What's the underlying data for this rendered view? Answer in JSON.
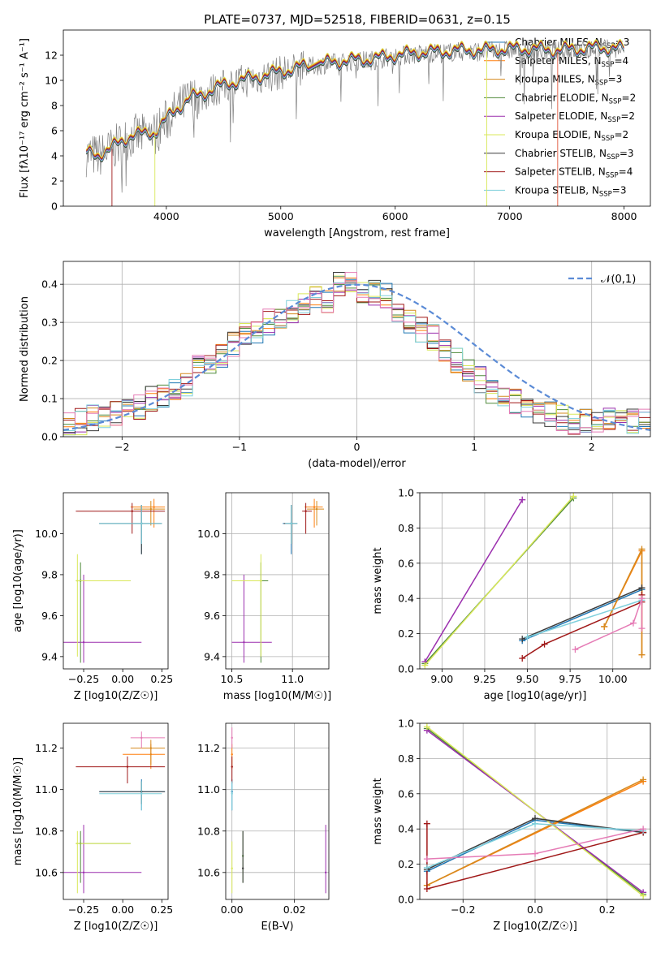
{
  "title": "PLATE=0737, MJD=52518, FIBERID=0631, z=0.15",
  "models": [
    {
      "label": "Chabrier MILES, N",
      "sub": "SSP",
      "suffix": "=3",
      "color": "#1f77b4"
    },
    {
      "label": "Salpeter MILES, N",
      "sub": "SSP",
      "suffix": "=4",
      "color": "#ff7f0e"
    },
    {
      "label": "Kroupa MILES, N",
      "sub": "SSP",
      "suffix": "=3",
      "color": "#d68a1e"
    },
    {
      "label": "Chabrier ELODIE, N",
      "sub": "SSP",
      "suffix": "=2",
      "color": "#4f8a3a"
    },
    {
      "label": "Salpeter ELODIE, N",
      "sub": "SSP",
      "suffix": "=2",
      "color": "#9b2fae"
    },
    {
      "label": "Kroupa ELODIE, N",
      "sub": "SSP",
      "suffix": "=2",
      "color": "#d9e85a"
    },
    {
      "label": "Chabrier STELIB, N",
      "sub": "SSP",
      "suffix": "=3",
      "color": "#3b3b3b"
    },
    {
      "label": "Salpeter STELIB, N",
      "sub": "SSP",
      "suffix": "=4",
      "color": "#a01818"
    },
    {
      "label": "Kroupa STELIB, N",
      "sub": "SSP",
      "suffix": "=3",
      "color": "#7fd0dc"
    }
  ],
  "chart_data": [
    {
      "type": "line",
      "xlabel": "wavelength [Angstrom, rest frame]",
      "ylabel": "Flux [fλ10⁻¹⁷ erg cm⁻² s⁻¹ A⁻¹]",
      "xlim": [
        3100,
        8230
      ],
      "ylim": [
        0,
        14
      ],
      "xticks": [
        4000,
        5000,
        6000,
        7000,
        8000
      ],
      "yticks": [
        0,
        2,
        4,
        6,
        8,
        10,
        12
      ],
      "data_color": "#808080",
      "continuum": {
        "x": [
          3300,
          3400,
          3500,
          3600,
          3700,
          3800,
          3900,
          4000,
          4100,
          4200,
          4300,
          4400,
          4600,
          4800,
          5000,
          5200,
          5400,
          5600,
          5800,
          6000,
          6200,
          6400,
          6600,
          6800,
          7000,
          7200,
          7400,
          7600,
          7800,
          8000
        ],
        "y": [
          4.1,
          4.0,
          4.4,
          5.0,
          5.6,
          5.6,
          5.8,
          6.8,
          7.7,
          8.5,
          8.7,
          9.2,
          9.8,
          10.2,
          10.6,
          11.0,
          11.3,
          11.5,
          11.6,
          11.9,
          12.1,
          12.2,
          12.3,
          12.3,
          12.4,
          12.4,
          12.3,
          12.4,
          12.5,
          12.4
        ]
      }
    },
    {
      "type": "line",
      "xlabel": "(data-model)/error",
      "ylabel": "Normed distribution",
      "xlim": [
        -2.5,
        2.5
      ],
      "ylim": [
        0,
        0.46
      ],
      "xticks": [
        -2,
        -1,
        0,
        1,
        2
      ],
      "yticks": [
        0.0,
        0.1,
        0.2,
        0.3,
        0.4
      ],
      "reference": {
        "name": "𝒩(0,1)",
        "color": "#5b8bd6"
      },
      "histogram_bin_width": 0.1,
      "histogram_envelope": [
        0.04,
        0.04,
        0.05,
        0.05,
        0.06,
        0.07,
        0.08,
        0.1,
        0.11,
        0.12,
        0.14,
        0.2,
        0.19,
        0.21,
        0.24,
        0.27,
        0.28,
        0.3,
        0.31,
        0.33,
        0.35,
        0.37,
        0.36,
        0.4,
        0.41,
        0.38,
        0.38,
        0.37,
        0.33,
        0.3,
        0.28,
        0.26,
        0.23,
        0.2,
        0.17,
        0.15,
        0.12,
        0.11,
        0.09,
        0.08,
        0.07,
        0.06,
        0.05,
        0.04,
        0.04,
        0.04,
        0.04,
        0.04,
        0.04,
        0.04
      ]
    },
    {
      "type": "scatter",
      "xlabel": "Z [log10(Z/Z☉)]",
      "ylabel": "age  [log10(age/yr)]",
      "xlim": [
        -0.38,
        0.29
      ],
      "ylim": [
        9.34,
        10.2
      ],
      "xticks": [
        -0.25,
        0.0,
        0.25
      ],
      "yticks": [
        9.4,
        9.6,
        9.8,
        10.0
      ],
      "points": [
        {
          "m": 0,
          "x": 0.12,
          "y": 10.05,
          "ex": [
            -0.15,
            0.25
          ],
          "ey": [
            9.9,
            10.14
          ]
        },
        {
          "m": 1,
          "x": 0.2,
          "y": 10.13,
          "ex": [
            0.05,
            0.27
          ],
          "ey": [
            10.03,
            10.17
          ]
        },
        {
          "m": 2,
          "x": 0.18,
          "y": 10.12,
          "ex": [
            0.07,
            0.27
          ],
          "ey": [
            10.04,
            10.16
          ]
        },
        {
          "m": 3,
          "x": -0.27,
          "y": 9.77,
          "ex": [
            -0.3,
            0.05
          ],
          "ey": [
            9.37,
            9.86
          ]
        },
        {
          "m": 4,
          "x": -0.25,
          "y": 9.47,
          "ex": [
            -0.38,
            0.12
          ],
          "ey": [
            9.37,
            9.8
          ]
        },
        {
          "m": 5,
          "x": -0.29,
          "y": 9.77,
          "ex": [
            -0.3,
            0.05
          ],
          "ey": [
            9.4,
            9.9
          ]
        },
        {
          "m": 6,
          "x": 0.12,
          "y": 10.05,
          "ex": [
            -0.15,
            0.25
          ],
          "ey": [
            9.9,
            10.14
          ]
        },
        {
          "m": 7,
          "x": 0.06,
          "y": 10.11,
          "ex": [
            -0.3,
            0.27
          ],
          "ey": [
            10.0,
            10.15
          ]
        },
        {
          "m": 8,
          "x": 0.12,
          "y": 10.05,
          "ex": [
            -0.15,
            0.25
          ],
          "ey": [
            9.95,
            10.14
          ]
        }
      ]
    },
    {
      "type": "scatter",
      "xlabel": "mass [log10(M/M☉)]",
      "ylabel": "",
      "xlim": [
        10.45,
        11.3
      ],
      "ylim": [
        9.34,
        10.2
      ],
      "xticks": [
        10.5,
        11.0
      ],
      "yticks": [
        9.4,
        9.6,
        9.8,
        10.0
      ],
      "points": [
        {
          "m": 0,
          "x": 10.99,
          "y": 10.05,
          "ex": [
            10.92,
            11.04
          ],
          "ey": [
            9.9,
            10.14
          ]
        },
        {
          "m": 1,
          "x": 11.18,
          "y": 10.13,
          "ex": [
            11.1,
            11.25
          ],
          "ey": [
            10.03,
            10.17
          ]
        },
        {
          "m": 2,
          "x": 11.2,
          "y": 10.12,
          "ex": [
            11.12,
            11.26
          ],
          "ey": [
            10.04,
            10.16
          ]
        },
        {
          "m": 3,
          "x": 10.74,
          "y": 9.77,
          "ex": [
            10.55,
            10.8
          ],
          "ey": [
            9.37,
            9.86
          ]
        },
        {
          "m": 4,
          "x": 10.6,
          "y": 9.47,
          "ex": [
            10.5,
            10.83
          ],
          "ey": [
            9.37,
            9.8
          ]
        },
        {
          "m": 5,
          "x": 10.74,
          "y": 9.77,
          "ex": [
            10.5,
            10.75
          ],
          "ey": [
            9.4,
            9.9
          ]
        },
        {
          "m": 6,
          "x": 10.99,
          "y": 10.05,
          "ex": [
            10.93,
            11.04
          ],
          "ey": [
            9.95,
            10.14
          ]
        },
        {
          "m": 7,
          "x": 11.11,
          "y": 10.11,
          "ex": [
            11.08,
            11.16
          ],
          "ey": [
            10.0,
            10.15
          ]
        },
        {
          "m": 8,
          "x": 10.99,
          "y": 10.05,
          "ex": [
            10.94,
            11.04
          ],
          "ey": [
            9.95,
            10.14
          ]
        }
      ]
    },
    {
      "type": "line",
      "xlabel": "age  [log10(age/yr)]",
      "ylabel": "mass weight",
      "xlim": [
        8.87,
        10.22
      ],
      "ylim": [
        0,
        1
      ],
      "xticks": [
        9.0,
        9.25,
        9.5,
        9.75,
        10.0
      ],
      "yticks": [
        0.0,
        0.2,
        0.4,
        0.6,
        0.8,
        1.0
      ],
      "series": [
        {
          "m": 0,
          "x": [
            9.47,
            10.17
          ],
          "y": [
            0.16,
            0.45
          ]
        },
        {
          "m": 1,
          "x": [
            9.95,
            10.17,
            10.17
          ],
          "y": [
            0.24,
            0.67,
            0.08
          ]
        },
        {
          "m": 2,
          "x": [
            9.95,
            10.17,
            10.17
          ],
          "y": [
            0.24,
            0.68,
            0.08
          ]
        },
        {
          "m": 3,
          "x": [
            8.9,
            9.77
          ],
          "y": [
            0.03,
            0.97
          ]
        },
        {
          "m": 4,
          "x": [
            8.9,
            9.47
          ],
          "y": [
            0.04,
            0.96
          ]
        },
        {
          "m": 5,
          "x": [
            8.9,
            9.77
          ],
          "y": [
            0.02,
            0.98
          ]
        },
        {
          "m": 6,
          "x": [
            9.47,
            10.17
          ],
          "y": [
            0.17,
            0.46
          ]
        },
        {
          "m": 7,
          "x": [
            9.47,
            9.6,
            10.17,
            10.17
          ],
          "y": [
            0.06,
            0.14,
            0.38,
            0.42
          ]
        },
        {
          "m": 8,
          "x": [
            9.5,
            10.17
          ],
          "y": [
            0.18,
            0.39
          ]
        },
        {
          "m": 9,
          "x": [
            9.78,
            10.12,
            10.17,
            10.17
          ],
          "y": [
            0.11,
            0.26,
            0.4,
            0.23
          ]
        }
      ]
    },
    {
      "type": "scatter",
      "xlabel": "Z [log10(Z/Z☉)]",
      "ylabel": "mass [log10(M/M☉)]",
      "xlim": [
        -0.38,
        0.29
      ],
      "ylim": [
        10.47,
        11.32
      ],
      "xticks": [
        -0.25,
        0.0,
        0.25
      ],
      "yticks": [
        10.6,
        10.8,
        11.0,
        11.2
      ],
      "points": [
        {
          "m": 0,
          "x": 0.12,
          "y": 10.99,
          "ex": [
            -0.15,
            0.27
          ],
          "ey": [
            10.9,
            11.05
          ]
        },
        {
          "m": 1,
          "x": 0.18,
          "y": 11.17,
          "ex": [
            0.0,
            0.27
          ],
          "ey": [
            11.1,
            11.22
          ]
        },
        {
          "m": 2,
          "x": 0.18,
          "y": 11.2,
          "ex": [
            0.05,
            0.27
          ],
          "ey": [
            11.12,
            11.24
          ]
        },
        {
          "m": 3,
          "x": -0.27,
          "y": 10.74,
          "ex": [
            -0.3,
            0.05
          ],
          "ey": [
            10.55,
            10.8
          ]
        },
        {
          "m": 4,
          "x": -0.25,
          "y": 10.6,
          "ex": [
            -0.38,
            0.12
          ],
          "ey": [
            10.5,
            10.83
          ]
        },
        {
          "m": 5,
          "x": -0.29,
          "y": 10.74,
          "ex": [
            -0.3,
            0.05
          ],
          "ey": [
            10.5,
            10.8
          ]
        },
        {
          "m": 6,
          "x": 0.12,
          "y": 10.99,
          "ex": [
            -0.15,
            0.27
          ],
          "ey": [
            10.93,
            11.04
          ]
        },
        {
          "m": 7,
          "x": 0.03,
          "y": 11.11,
          "ex": [
            -0.3,
            0.27
          ],
          "ey": [
            11.03,
            11.16
          ]
        },
        {
          "m": 8,
          "x": 0.12,
          "y": 10.98,
          "ex": [
            -0.15,
            0.25
          ],
          "ey": [
            10.9,
            11.04
          ]
        },
        {
          "m": 9,
          "x": 0.12,
          "y": 11.25,
          "ex": [
            0.05,
            0.27
          ],
          "ey": [
            11.2,
            11.28
          ]
        }
      ]
    },
    {
      "type": "scatter",
      "xlabel": "E(B-V)",
      "ylabel": "",
      "xlim": [
        -0.002,
        0.031
      ],
      "ylim": [
        10.47,
        11.32
      ],
      "xticks": [
        0.0,
        0.02
      ],
      "yticks": [
        10.6,
        10.8,
        11.0,
        11.2
      ],
      "points": [
        {
          "m": 0,
          "x": 0.0,
          "y": 10.99,
          "ey": [
            10.9,
            11.05
          ]
        },
        {
          "m": 1,
          "x": 0.0,
          "y": 11.17,
          "ey": [
            11.1,
            11.22
          ]
        },
        {
          "m": 3,
          "x": 0.0035,
          "y": 10.68,
          "ey": [
            10.55,
            10.8
          ]
        },
        {
          "m": 4,
          "x": 0.03,
          "y": 10.6,
          "ey": [
            10.5,
            10.83
          ]
        },
        {
          "m": 5,
          "x": 0.0,
          "y": 10.62,
          "ey": [
            10.5,
            10.75
          ]
        },
        {
          "m": 6,
          "x": 0.0035,
          "y": 10.62,
          "ey": [
            10.55,
            10.8
          ]
        },
        {
          "m": 7,
          "x": 0.0,
          "y": 11.11,
          "ey": [
            11.03,
            11.16
          ]
        },
        {
          "m": 8,
          "x": 0.0,
          "y": 10.98,
          "ey": [
            10.9,
            11.04
          ]
        },
        {
          "m": 9,
          "x": 0.0,
          "y": 11.25,
          "ey": [
            11.2,
            11.3
          ]
        }
      ]
    },
    {
      "type": "line",
      "xlabel": "Z [log10(Z/Z☉)]",
      "ylabel": "mass weight",
      "xlim": [
        -0.32,
        0.32
      ],
      "ylim": [
        0,
        1
      ],
      "xticks": [
        -0.2,
        0.0,
        0.2
      ],
      "yticks": [
        0.0,
        0.2,
        0.4,
        0.6,
        0.8,
        1.0
      ],
      "series": [
        {
          "m": 0,
          "x": [
            -0.3,
            0.0,
            0.3
          ],
          "y": [
            0.16,
            0.45,
            0.38
          ]
        },
        {
          "m": 1,
          "x": [
            -0.3,
            0.3
          ],
          "y": [
            0.08,
            0.67
          ]
        },
        {
          "m": 2,
          "x": [
            -0.3,
            0.3
          ],
          "y": [
            0.08,
            0.68
          ]
        },
        {
          "m": 3,
          "x": [
            -0.3,
            0.3
          ],
          "y": [
            0.97,
            0.03
          ]
        },
        {
          "m": 4,
          "x": [
            -0.3,
            0.3
          ],
          "y": [
            0.96,
            0.04
          ]
        },
        {
          "m": 5,
          "x": [
            -0.3,
            0.3
          ],
          "y": [
            0.98,
            0.02
          ]
        },
        {
          "m": 6,
          "x": [
            -0.3,
            0.0,
            0.3
          ],
          "y": [
            0.17,
            0.46,
            0.38
          ]
        },
        {
          "m": 7,
          "x": [
            -0.3,
            -0.3,
            0.3
          ],
          "y": [
            0.43,
            0.06,
            0.38
          ]
        },
        {
          "m": 8,
          "x": [
            -0.3,
            0.0,
            0.3
          ],
          "y": [
            0.18,
            0.43,
            0.39
          ]
        },
        {
          "m": 9,
          "x": [
            -0.3,
            0.0,
            0.3
          ],
          "y": [
            0.23,
            0.26,
            0.4
          ]
        }
      ]
    }
  ]
}
